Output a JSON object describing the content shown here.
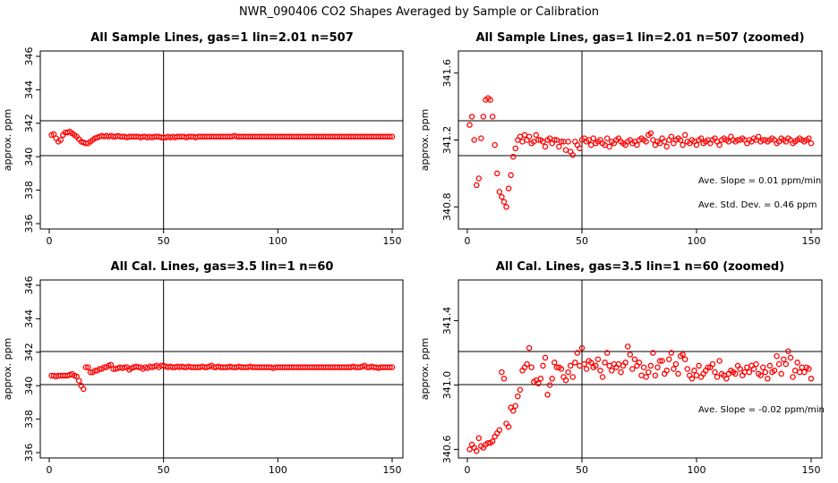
{
  "title": "NWR_090406  CO2 Shapes Averaged by Sample or Calibration",
  "colors": {
    "points": "#ff0000",
    "lines": "#000000",
    "background": "#ffffff"
  },
  "chart_data": [
    {
      "type": "scatter",
      "title": "All Sample Lines, gas=1 lin=2.01 n=507",
      "ylabel": "approx. ppm",
      "xlim": [
        0,
        150
      ],
      "ylim": [
        336,
        346
      ],
      "xticks": [
        "0",
        "50",
        "100",
        "150"
      ],
      "yticks": [
        "336",
        "338",
        "340",
        "342",
        "344",
        "346"
      ],
      "hlines": [
        342.2,
        340.1
      ],
      "vlines": [
        50
      ],
      "x": [
        1,
        2,
        3,
        4,
        5,
        6,
        7,
        8,
        9,
        10,
        11,
        12,
        13,
        14,
        15,
        16,
        17,
        18,
        19,
        20,
        21,
        22,
        23,
        24,
        25,
        26,
        27,
        28,
        29,
        30,
        31,
        32,
        33,
        34,
        35,
        36,
        37,
        38,
        39,
        40,
        41,
        42,
        43,
        44,
        45,
        46,
        47,
        48,
        49,
        50,
        51,
        52,
        53,
        54,
        55,
        56,
        57,
        58,
        59,
        60,
        61,
        62,
        63,
        64,
        65,
        66,
        67,
        68,
        69,
        70,
        71,
        72,
        73,
        74,
        75,
        76,
        77,
        78,
        79,
        80,
        81,
        82,
        83,
        84,
        85,
        86,
        87,
        88,
        89,
        90,
        91,
        92,
        93,
        94,
        95,
        96,
        97,
        98,
        99,
        100,
        101,
        102,
        103,
        104,
        105,
        106,
        107,
        108,
        109,
        110,
        111,
        112,
        113,
        114,
        115,
        116,
        117,
        118,
        119,
        120,
        121,
        122,
        123,
        124,
        125,
        126,
        127,
        128,
        129,
        130,
        131,
        132,
        133,
        134,
        135,
        136,
        137,
        138,
        139,
        140,
        141,
        142,
        143,
        144,
        145,
        146,
        147,
        148,
        149,
        150
      ],
      "y": [
        341.3,
        341.35,
        341.1,
        340.9,
        341.0,
        341.3,
        341.45,
        341.45,
        341.5,
        341.4,
        341.3,
        341.2,
        341.05,
        340.9,
        340.85,
        340.8,
        340.8,
        340.9,
        341.0,
        341.1,
        341.15,
        341.2,
        341.25,
        341.2,
        341.25,
        341.2,
        341.25,
        341.2,
        341.2,
        341.25,
        341.2,
        341.2,
        341.2,
        341.15,
        341.2,
        341.2,
        341.2,
        341.2,
        341.2,
        341.15,
        341.2,
        341.2,
        341.15,
        341.2,
        341.15,
        341.2,
        341.2,
        341.2,
        341.15,
        341.15,
        341.15,
        341.2,
        341.15,
        341.2,
        341.15,
        341.2,
        341.2,
        341.2,
        341.2,
        341.15,
        341.2,
        341.2,
        341.2,
        341.15,
        341.2,
        341.2,
        341.2,
        341.2,
        341.2,
        341.2,
        341.2,
        341.2,
        341.2,
        341.2,
        341.2,
        341.2,
        341.2,
        341.2,
        341.2,
        341.2,
        341.25,
        341.2,
        341.2,
        341.2,
        341.2,
        341.2,
        341.2,
        341.2,
        341.2,
        341.2,
        341.2,
        341.2,
        341.2,
        341.2,
        341.2,
        341.2,
        341.2,
        341.2,
        341.2,
        341.2,
        341.2,
        341.2,
        341.2,
        341.2,
        341.2,
        341.2,
        341.2,
        341.2,
        341.2,
        341.2,
        341.2,
        341.2,
        341.2,
        341.2,
        341.2,
        341.2,
        341.2,
        341.2,
        341.2,
        341.2,
        341.2,
        341.2,
        341.2,
        341.2,
        341.2,
        341.2,
        341.2,
        341.2,
        341.2,
        341.2,
        341.2,
        341.2,
        341.2,
        341.2,
        341.2,
        341.2,
        341.2,
        341.2,
        341.2,
        341.2,
        341.2,
        341.2,
        341.2,
        341.2,
        341.2,
        341.2,
        341.2,
        341.2,
        341.2,
        341.2
      ],
      "annotations": []
    },
    {
      "type": "scatter",
      "title": "All Sample Lines, gas=1 lin=2.01 n=507 (zoomed)",
      "ylabel": "approx. ppm",
      "xlim": [
        0,
        150
      ],
      "ylim": [
        340.7,
        341.7
      ],
      "xticks": [
        "0",
        "50",
        "100",
        "150"
      ],
      "yticks": [
        "340.8",
        "341.2",
        "341.6"
      ],
      "hlines": [
        341.3,
        341.1
      ],
      "vlines": [
        50
      ],
      "x": [
        1,
        2,
        3,
        4,
        5,
        6,
        7,
        8,
        9,
        10,
        11,
        12,
        13,
        14,
        15,
        16,
        17,
        18,
        19,
        20,
        21,
        22,
        23,
        24,
        25,
        26,
        27,
        28,
        29,
        30,
        31,
        32,
        33,
        34,
        35,
        36,
        37,
        38,
        39,
        40,
        41,
        42,
        43,
        44,
        45,
        46,
        47,
        48,
        49,
        50,
        51,
        52,
        53,
        54,
        55,
        56,
        57,
        58,
        59,
        60,
        61,
        62,
        63,
        64,
        65,
        66,
        67,
        68,
        69,
        70,
        71,
        72,
        73,
        74,
        75,
        76,
        77,
        78,
        79,
        80,
        81,
        82,
        83,
        84,
        85,
        86,
        87,
        88,
        89,
        90,
        91,
        92,
        93,
        94,
        95,
        96,
        97,
        98,
        99,
        100,
        101,
        102,
        103,
        104,
        105,
        106,
        107,
        108,
        109,
        110,
        111,
        112,
        113,
        114,
        115,
        116,
        117,
        118,
        119,
        120,
        121,
        122,
        123,
        124,
        125,
        126,
        127,
        128,
        129,
        130,
        131,
        132,
        133,
        134,
        135,
        136,
        137,
        138,
        139,
        140,
        141,
        142,
        143,
        144,
        145,
        146,
        147,
        148,
        149,
        150
      ],
      "y": [
        341.29,
        341.34,
        341.2,
        340.93,
        340.97,
        341.21,
        341.34,
        341.44,
        341.45,
        341.44,
        341.34,
        341.17,
        341.0,
        340.89,
        340.86,
        340.83,
        340.8,
        340.91,
        340.99,
        341.1,
        341.15,
        341.2,
        341.22,
        341.19,
        341.23,
        341.2,
        341.22,
        341.18,
        341.19,
        341.23,
        341.2,
        341.2,
        341.19,
        341.16,
        341.2,
        341.21,
        341.18,
        341.2,
        341.2,
        341.16,
        341.19,
        341.19,
        341.14,
        341.19,
        341.13,
        341.11,
        341.19,
        341.17,
        341.15,
        341.2,
        341.21,
        341.19,
        341.2,
        341.17,
        341.21,
        341.18,
        341.19,
        341.2,
        341.18,
        341.17,
        341.21,
        341.16,
        341.19,
        341.18,
        341.2,
        341.21,
        341.19,
        341.18,
        341.17,
        341.19,
        341.2,
        341.18,
        341.19,
        341.17,
        341.2,
        341.21,
        341.2,
        341.19,
        341.23,
        341.24,
        341.2,
        341.17,
        341.19,
        341.18,
        341.21,
        341.19,
        341.16,
        341.2,
        341.22,
        341.18,
        341.2,
        341.21,
        341.2,
        341.17,
        341.23,
        341.19,
        341.18,
        341.2,
        341.19,
        341.17,
        341.2,
        341.21,
        341.18,
        341.19,
        341.2,
        341.18,
        341.2,
        341.21,
        341.19,
        341.17,
        341.2,
        341.21,
        341.2,
        341.19,
        341.22,
        341.2,
        341.19,
        341.2,
        341.2,
        341.21,
        341.2,
        341.18,
        341.2,
        341.19,
        341.21,
        341.2,
        341.22,
        341.19,
        341.2,
        341.2,
        341.19,
        341.2,
        341.21,
        341.2,
        341.18,
        341.19,
        341.21,
        341.2,
        341.19,
        341.21,
        341.2,
        341.18,
        341.19,
        341.2,
        341.21,
        341.2,
        341.19,
        341.2,
        341.21,
        341.18
      ],
      "annotations": [
        "Ave. Slope =  0.01  ppm/min",
        "Ave. Std. Dev. =  0.46  ppm"
      ]
    },
    {
      "type": "scatter",
      "title": "All Cal. Lines, gas=3.5 lin=1 n=60",
      "ylabel": "approx. ppm",
      "xlim": [
        0,
        150
      ],
      "ylim": [
        336,
        346
      ],
      "xticks": [
        "0",
        "50",
        "100",
        "150"
      ],
      "yticks": [
        "336",
        "338",
        "340",
        "342",
        "344",
        "346"
      ],
      "hlines": [
        342.1,
        340.1
      ],
      "vlines": [
        50
      ],
      "x": [
        1,
        2,
        3,
        4,
        5,
        6,
        7,
        8,
        9,
        10,
        11,
        12,
        13,
        14,
        15,
        16,
        17,
        18,
        19,
        20,
        21,
        22,
        23,
        24,
        25,
        26,
        27,
        28,
        29,
        30,
        31,
        32,
        33,
        34,
        35,
        36,
        37,
        38,
        39,
        40,
        41,
        42,
        43,
        44,
        45,
        46,
        47,
        48,
        49,
        50,
        51,
        52,
        53,
        54,
        55,
        56,
        57,
        58,
        59,
        60,
        61,
        62,
        63,
        64,
        65,
        66,
        67,
        68,
        69,
        70,
        71,
        72,
        73,
        74,
        75,
        76,
        77,
        78,
        79,
        80,
        81,
        82,
        83,
        84,
        85,
        86,
        87,
        88,
        89,
        90,
        91,
        92,
        93,
        94,
        95,
        96,
        97,
        98,
        99,
        100,
        101,
        102,
        103,
        104,
        105,
        106,
        107,
        108,
        109,
        110,
        111,
        112,
        113,
        114,
        115,
        116,
        117,
        118,
        119,
        120,
        121,
        122,
        123,
        124,
        125,
        126,
        127,
        128,
        129,
        130,
        131,
        132,
        133,
        134,
        135,
        136,
        137,
        138,
        139,
        140,
        141,
        142,
        143,
        144,
        145,
        146,
        147,
        148,
        149,
        150
      ],
      "y": [
        340.6,
        340.6,
        340.55,
        340.6,
        340.6,
        340.6,
        340.6,
        340.6,
        340.65,
        340.7,
        340.6,
        340.55,
        340.3,
        340.0,
        339.8,
        341.1,
        341.1,
        340.8,
        340.8,
        340.9,
        340.9,
        341.0,
        341.0,
        341.1,
        341.1,
        341.2,
        341.25,
        341.0,
        341.0,
        341.05,
        341.1,
        341.05,
        341.1,
        341.1,
        340.95,
        341.05,
        341.1,
        341.15,
        341.1,
        341.1,
        341.0,
        341.1,
        341.05,
        341.15,
        341.1,
        341.15,
        341.2,
        341.1,
        341.2,
        341.2,
        341.15,
        341.1,
        341.15,
        341.1,
        341.1,
        341.15,
        341.1,
        341.15,
        341.1,
        341.1,
        341.15,
        341.1,
        341.1,
        341.1,
        341.1,
        341.1,
        341.15,
        341.1,
        341.1,
        341.15,
        341.2,
        341.1,
        341.1,
        341.15,
        341.1,
        341.1,
        341.1,
        341.1,
        341.15,
        341.1,
        341.1,
        341.1,
        341.15,
        341.1,
        341.1,
        341.1,
        341.1,
        341.15,
        341.1,
        341.1,
        341.1,
        341.1,
        341.1,
        341.1,
        341.1,
        341.1,
        341.1,
        341.05,
        341.1,
        341.1,
        341.1,
        341.1,
        341.1,
        341.1,
        341.1,
        341.1,
        341.1,
        341.1,
        341.1,
        341.1,
        341.1,
        341.1,
        341.1,
        341.1,
        341.1,
        341.1,
        341.1,
        341.1,
        341.1,
        341.1,
        341.1,
        341.1,
        341.1,
        341.1,
        341.1,
        341.1,
        341.1,
        341.1,
        341.1,
        341.1,
        341.1,
        341.1,
        341.15,
        341.1,
        341.1,
        341.1,
        341.15,
        341.2,
        341.1,
        341.1,
        341.15,
        341.1,
        341.1,
        341.05,
        341.1,
        341.1,
        341.1,
        341.1,
        341.1,
        341.1
      ],
      "annotations": []
    },
    {
      "type": "scatter",
      "title": "All Cal. Lines, gas=3.5 lin=1 n=60 (zoomed)",
      "ylabel": "approx. ppm",
      "xlim": [
        0,
        150
      ],
      "ylim": [
        340.58,
        341.62
      ],
      "xticks": [
        "0",
        "50",
        "100",
        "150"
      ],
      "yticks": [
        "340.6",
        "341.0",
        "341.4"
      ],
      "hlines": [
        341.2,
        341.02
      ],
      "vlines": [
        50
      ],
      "x": [
        1,
        2,
        3,
        4,
        5,
        6,
        7,
        8,
        9,
        10,
        11,
        12,
        13,
        14,
        15,
        16,
        17,
        18,
        19,
        20,
        21,
        22,
        23,
        24,
        25,
        26,
        27,
        28,
        29,
        30,
        31,
        32,
        33,
        34,
        35,
        36,
        37,
        38,
        39,
        40,
        41,
        42,
        43,
        44,
        45,
        46,
        47,
        48,
        49,
        50,
        51,
        52,
        53,
        54,
        55,
        56,
        57,
        58,
        59,
        60,
        61,
        62,
        63,
        64,
        65,
        66,
        67,
        68,
        69,
        70,
        71,
        72,
        73,
        74,
        75,
        76,
        77,
        78,
        79,
        80,
        81,
        82,
        83,
        84,
        85,
        86,
        87,
        88,
        89,
        90,
        91,
        92,
        93,
        94,
        95,
        96,
        97,
        98,
        99,
        100,
        101,
        102,
        103,
        104,
        105,
        106,
        107,
        108,
        109,
        110,
        111,
        112,
        113,
        114,
        115,
        116,
        117,
        118,
        119,
        120,
        121,
        122,
        123,
        124,
        125,
        126,
        127,
        128,
        129,
        130,
        131,
        132,
        133,
        134,
        135,
        136,
        137,
        138,
        139,
        140,
        141,
        142,
        143,
        144,
        145,
        146,
        147,
        148,
        149,
        150
      ],
      "y": [
        340.6,
        340.63,
        340.61,
        340.59,
        340.67,
        340.62,
        340.61,
        340.63,
        340.64,
        340.64,
        340.65,
        340.68,
        340.7,
        340.72,
        341.08,
        341.04,
        340.76,
        340.74,
        340.86,
        340.84,
        340.87,
        340.93,
        340.97,
        341.09,
        341.11,
        341.13,
        341.23,
        341.11,
        341.02,
        341.03,
        341.01,
        341.04,
        341.12,
        341.17,
        340.94,
        341.0,
        341.04,
        341.14,
        341.11,
        341.11,
        341.1,
        341.05,
        341.03,
        341.08,
        341.12,
        341.05,
        341.14,
        341.2,
        341.12,
        341.23,
        341.13,
        341.1,
        341.15,
        341.14,
        341.11,
        341.12,
        341.16,
        341.09,
        341.05,
        341.14,
        341.2,
        341.12,
        341.09,
        341.13,
        341.11,
        341.13,
        341.08,
        341.12,
        341.14,
        341.24,
        341.19,
        341.1,
        341.16,
        341.12,
        341.14,
        341.06,
        341.11,
        341.05,
        341.08,
        341.12,
        341.2,
        341.06,
        341.11,
        341.15,
        341.15,
        341.07,
        341.09,
        341.16,
        341.2,
        341.1,
        341.13,
        341.07,
        341.18,
        341.19,
        341.16,
        341.1,
        341.06,
        341.04,
        341.09,
        341.06,
        341.12,
        341.05,
        341.07,
        341.09,
        341.11,
        341.11,
        341.13,
        341.08,
        341.05,
        341.15,
        341.07,
        341.06,
        341.04,
        341.07,
        341.09,
        341.08,
        341.07,
        341.12,
        341.1,
        341.06,
        341.08,
        341.11,
        341.08,
        341.12,
        341.1,
        341.13,
        341.07,
        341.06,
        341.11,
        341.08,
        341.04,
        341.12,
        341.08,
        341.09,
        341.18,
        341.13,
        341.07,
        341.16,
        341.13,
        341.21,
        341.17,
        341.05,
        341.09,
        341.14,
        341.08,
        341.11,
        341.08,
        341.11,
        341.1,
        341.04
      ],
      "annotations": [
        "Ave. Slope =  -0.02  ppm/min"
      ]
    }
  ]
}
